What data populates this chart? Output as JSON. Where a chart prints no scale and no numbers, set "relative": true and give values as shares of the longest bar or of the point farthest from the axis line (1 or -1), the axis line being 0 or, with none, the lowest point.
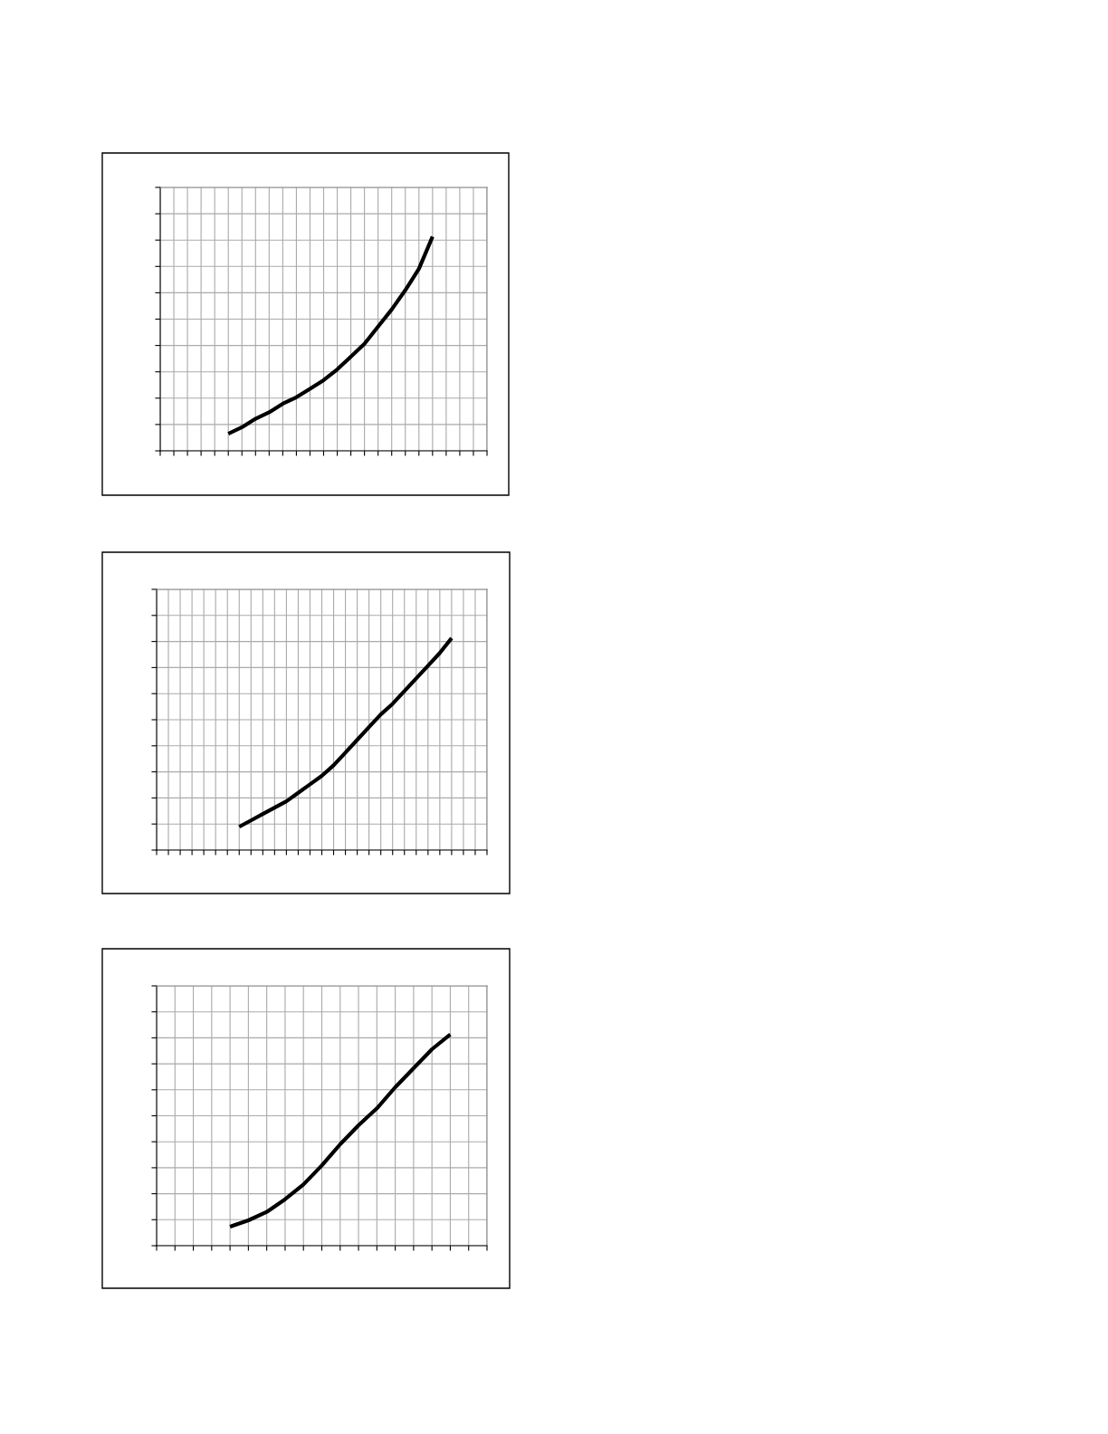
{
  "chart_data": [
    {
      "type": "line",
      "relative": true,
      "grid": true,
      "categories": [
        null,
        null,
        null,
        null,
        null,
        null,
        null,
        null,
        null,
        null,
        null,
        null,
        null,
        null,
        null,
        null,
        null,
        null,
        null,
        null,
        null,
        null,
        null,
        null,
        null
      ],
      "series": [
        {
          "color": "#000000",
          "values": [
            null,
            null,
            null,
            null,
            null,
            0.08,
            0.11,
            0.15,
            0.18,
            0.22,
            0.25,
            0.29,
            0.33,
            0.38,
            0.44,
            0.5,
            0.58,
            0.66,
            0.75,
            0.85,
            1.0,
            null,
            null,
            null,
            null
          ]
        }
      ]
    },
    {
      "type": "line",
      "relative": true,
      "grid": true,
      "categories": [
        null,
        null,
        null,
        null,
        null,
        null,
        null,
        null,
        null,
        null,
        null,
        null,
        null,
        null,
        null,
        null,
        null,
        null,
        null,
        null,
        null,
        null,
        null,
        null,
        null,
        null,
        null,
        null,
        null
      ],
      "series": [
        {
          "color": "#000000",
          "values": [
            null,
            null,
            null,
            null,
            null,
            null,
            null,
            0.11,
            0.14,
            0.17,
            0.2,
            0.23,
            0.27,
            0.31,
            0.35,
            0.4,
            0.46,
            0.52,
            0.58,
            0.64,
            0.69,
            0.75,
            0.81,
            0.87,
            0.93,
            1.0,
            null,
            null,
            null
          ]
        }
      ]
    },
    {
      "type": "line",
      "relative": true,
      "grid": true,
      "categories": [
        null,
        null,
        null,
        null,
        null,
        null,
        null,
        null,
        null,
        null,
        null,
        null,
        null,
        null,
        null,
        null,
        null,
        null,
        null
      ],
      "series": [
        {
          "color": "#000000",
          "values": [
            null,
            null,
            null,
            null,
            0.09,
            0.12,
            0.16,
            0.22,
            0.29,
            0.38,
            0.48,
            0.57,
            0.65,
            0.75,
            0.84,
            0.93,
            1.0,
            null,
            null
          ]
        }
      ]
    }
  ]
}
